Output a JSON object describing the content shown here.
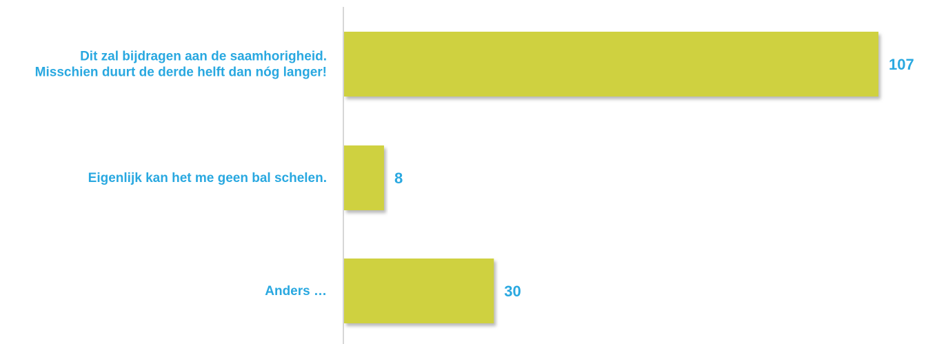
{
  "chart_data": {
    "type": "bar",
    "orientation": "horizontal",
    "categories": [
      [
        "Dit zal bijdragen aan de saamhorigheid.",
        "Misschien duurt de derde helft dan nóg langer!"
      ],
      [
        "Eigenlijk kan het me geen bal schelen."
      ],
      [
        "Anders …"
      ]
    ],
    "values": [
      107,
      8,
      30
    ],
    "data_labels": [
      "107",
      "8",
      "30"
    ],
    "xlim": [
      0,
      107
    ],
    "title": "",
    "xlabel": "",
    "ylabel": "",
    "grid": false,
    "legend": "none",
    "colors": {
      "bar": "#cfd141",
      "label_text": "#29a8e0",
      "axis": "#c8c8c8",
      "shadow": "#9a9a9a"
    }
  }
}
